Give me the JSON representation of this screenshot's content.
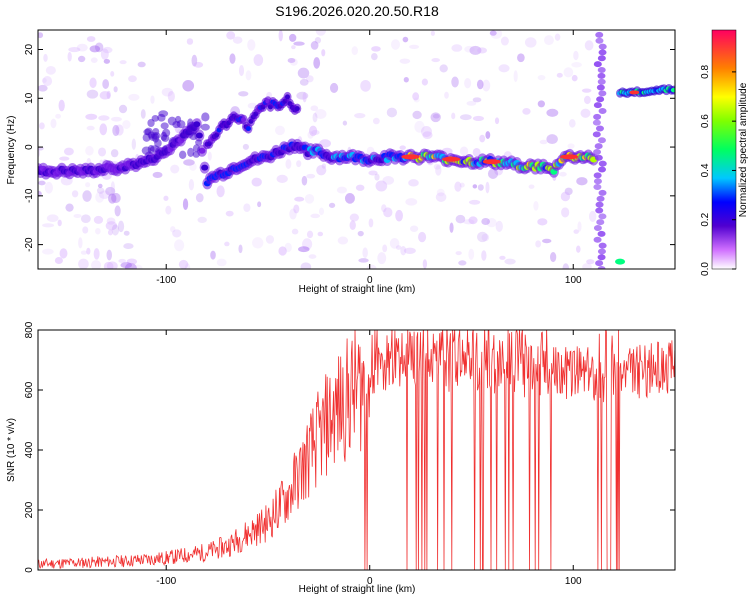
{
  "title": "S196.2026.020.20.50.R18",
  "chart_data": [
    {
      "type": "heatmap",
      "title": "S196.2026.020.20.50.R18",
      "xlabel": "Height of straight line (km)",
      "ylabel": "Frequency (Hz)",
      "xlim": [
        -163,
        150
      ],
      "ylim": [
        -25,
        24
      ],
      "x_ticks": [
        -100,
        0,
        100
      ],
      "y_ticks": [
        -20,
        -10,
        0,
        10,
        20
      ],
      "colorbar": {
        "label": "Normalized spectral amplitude",
        "range": [
          0,
          0.97
        ],
        "ticks": [
          0.0,
          0.2,
          0.4,
          0.6,
          0.8
        ]
      },
      "ridge": {
        "x": [
          -163,
          -150,
          -140,
          -130,
          -120,
          -110,
          -100,
          -95,
          -90,
          -85,
          -80,
          -76,
          -70,
          -60,
          -50,
          -40,
          -35,
          -30,
          -25,
          -20,
          -10,
          0,
          10,
          20,
          30,
          40,
          50,
          60,
          70,
          80,
          85,
          90,
          95,
          100,
          105,
          110
        ],
        "y": [
          -5,
          -5,
          -5,
          -4.5,
          -4,
          -3,
          -1,
          1,
          3,
          5,
          -7,
          -6,
          -5,
          -3,
          -2,
          0,
          0.5,
          -1,
          -1,
          -2,
          -2,
          -2.5,
          -2,
          -2,
          -2,
          -2.5,
          -3,
          -3,
          -3.5,
          -4,
          -4,
          -5,
          -2,
          -2,
          -2,
          -2
        ]
      },
      "branch": {
        "x": [
          -80,
          -75,
          -70,
          -65,
          -60,
          -55,
          -50,
          -45,
          -40,
          -35
        ],
        "y": [
          0,
          3,
          5,
          6.5,
          4,
          7,
          9,
          8,
          10,
          7
        ]
      },
      "segment_right": {
        "x": [
          123,
          150
        ],
        "y": [
          11,
          12
        ]
      },
      "vertical_band_x": 113
    },
    {
      "type": "line",
      "xlabel": "Height of straight line (km)",
      "ylabel": "SNR (10 * v/v)",
      "xlim": [
        -163,
        150
      ],
      "ylim": [
        0,
        800
      ],
      "x_ticks": [
        -100,
        0,
        100
      ],
      "y_ticks": [
        0,
        200,
        400,
        600,
        800
      ],
      "series": [
        {
          "name": "SNR",
          "color": "#f03030",
          "x": [
            -163,
            -140,
            -120,
            -100,
            -90,
            -80,
            -70,
            -60,
            -50,
            -40,
            -30,
            -20,
            -10,
            0,
            10,
            20,
            30,
            40,
            50,
            60,
            70,
            80,
            90,
            100,
            110,
            115,
            120,
            130,
            140,
            150
          ],
          "y": [
            20,
            25,
            30,
            40,
            50,
            60,
            80,
            120,
            160,
            250,
            380,
            500,
            580,
            640,
            680,
            700,
            700,
            680,
            680,
            680,
            670,
            660,
            660,
            660,
            650,
            620,
            640,
            660,
            670,
            680
          ]
        }
      ],
      "dropout_regions_x": [
        [
          -3,
          90
        ],
        [
          112,
          123
        ]
      ]
    }
  ]
}
